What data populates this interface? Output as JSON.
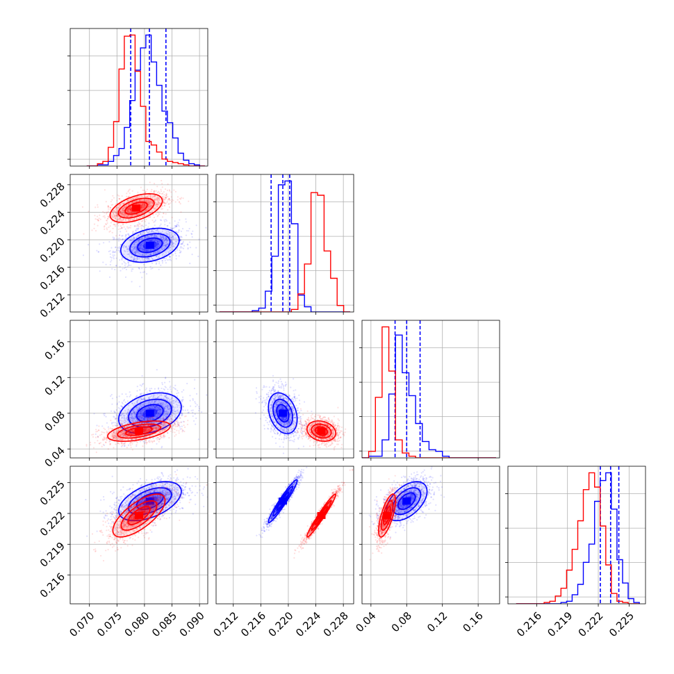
{
  "colors": {
    "series_a": "#0000ff",
    "series_b": "#ff0000",
    "grid": "#b0b0b0",
    "frame": "#000000"
  },
  "chart_data": {
    "type": "corner",
    "series": [
      {
        "color": "#0000ff",
        "quantiles": {
          "p0": [
            0.0775,
            0.0809,
            0.0839
          ],
          "p1": [
            0.2175,
            0.2192,
            0.2202
          ],
          "p2": [
            0.067,
            0.08,
            0.095
          ],
          "p3": [
            0.2222,
            0.2232,
            0.224
          ]
        },
        "hist": {
          "p0": {
            "edges": [
              0.0695,
              0.091
            ],
            "counts": [
              0,
              0,
              1,
              1,
              4,
              9,
              15,
              33,
              56,
              82,
              101,
              112,
              89,
              69,
              47,
              37,
              24,
              11,
              5,
              2,
              1,
              0
            ]
          },
          "p1": {
            "edges": [
              0.21,
              0.229
            ],
            "counts": [
              0,
              0,
              0,
              0,
              0,
              1,
              3,
              16,
              43,
              98,
              101,
              68,
              13,
              4,
              0,
              0,
              0,
              0,
              0,
              0
            ]
          },
          "p2": {
            "edges": [
              0.03,
              0.18
            ],
            "counts": [
              0,
              1,
              1,
              11,
              39,
              75,
              52,
              38,
              21,
              10,
              5,
              4,
              1,
              0,
              0,
              0,
              0,
              0,
              0,
              0
            ]
          },
          "p3": {
            "edges": [
              0.214,
              0.226
            ],
            "counts": [
              0,
              0,
              0,
              0,
              0,
              0,
              0,
              0,
              1,
              2,
              7,
              15,
              32,
              46,
              79,
              95,
              101,
              73,
              34,
              16,
              4,
              1
            ]
          }
        },
        "pairs": [
          {
            "x": "p0",
            "y": "p1",
            "mean": [
              0.081,
              0.2192
            ],
            "sd": [
              0.0028,
              0.0013
            ],
            "rho": 0.3
          },
          {
            "x": "p0",
            "y": "p2",
            "mean": [
              0.081,
              0.08
            ],
            "sd": [
              0.003,
              0.012
            ],
            "rho": 0.3
          },
          {
            "x": "p1",
            "y": "p2",
            "mean": [
              0.2192,
              0.08
            ],
            "sd": [
              0.0011,
              0.012
            ],
            "rho": -0.3
          },
          {
            "x": "p0",
            "y": "p3",
            "mean": [
              0.081,
              0.2232
            ],
            "sd": [
              0.003,
              0.001
            ],
            "rho": 0.5
          },
          {
            "x": "p1",
            "y": "p3",
            "mean": [
              0.2192,
              0.2232
            ],
            "sd": [
              0.0011,
              0.0011
            ],
            "rho": 0.96
          },
          {
            "x": "p2",
            "y": "p3",
            "mean": [
              0.08,
              0.2232
            ],
            "sd": [
              0.012,
              0.001
            ],
            "rho": 0.5
          }
        ]
      },
      {
        "color": "#ff0000",
        "hist": {
          "p0": {
            "edges": [
              0.0695,
              0.091
            ],
            "counts": [
              0,
              0,
              2,
              4,
              16,
              38,
              83,
              111,
              112,
              81,
              51,
              21,
              18,
              12,
              6,
              4,
              3,
              2,
              1,
              0,
              0,
              0
            ]
          },
          "p1": {
            "edges": [
              0.21,
              0.229
            ],
            "counts": [
              0,
              0,
              0,
              0,
              0,
              0,
              0,
              0,
              0,
              0,
              0,
              2,
              14,
              37,
              92,
              90,
              47,
              26,
              5,
              0
            ]
          },
          "p2": {
            "edges": [
              0.03,
              0.18
            ],
            "counts": [
              0,
              4,
              37,
              80,
              53,
              11,
              3,
              1,
              0,
              0,
              0,
              0,
              0,
              0,
              0,
              0,
              0,
              0,
              0,
              0
            ]
          },
          "p3": {
            "edges": [
              0.214,
              0.226
            ],
            "counts": [
              0,
              0,
              0,
              0,
              0,
              1,
              2,
              6,
              12,
              26,
              42,
              64,
              88,
              101,
              90,
              60,
              30,
              8,
              2,
              1,
              0,
              0
            ]
          }
        },
        "pairs": [
          {
            "x": "p0",
            "y": "p1",
            "mean": [
              0.0785,
              0.2246
            ],
            "sd": [
              0.0025,
              0.0011
            ],
            "rho": 0.5
          },
          {
            "x": "p0",
            "y": "p2",
            "mean": [
              0.079,
              0.06
            ],
            "sd": [
              0.003,
              0.006
            ],
            "rho": 0.5
          },
          {
            "x": "p1",
            "y": "p2",
            "mean": [
              0.2248,
              0.06
            ],
            "sd": [
              0.0011,
              0.006
            ],
            "rho": -0.2
          },
          {
            "x": "p0",
            "y": "p3",
            "mean": [
              0.079,
              0.2218
            ],
            "sd": [
              0.0025,
              0.0011
            ],
            "rho": 0.7
          },
          {
            "x": "p1",
            "y": "p3",
            "mean": [
              0.2248,
              0.2218
            ],
            "sd": [
              0.0011,
              0.0011
            ],
            "rho": 0.97
          },
          {
            "x": "p2",
            "y": "p3",
            "mean": [
              0.058,
              0.2218
            ],
            "sd": [
              0.005,
              0.0011
            ],
            "rho": 0.7
          }
        ]
      }
    ],
    "panels": {
      "p0": {
        "range": [
          0.0665,
          0.0915
        ],
        "ticks": [
          0.07,
          0.075,
          0.08,
          0.085,
          0.09
        ],
        "tick_labels": [
          "0.070",
          "0.075",
          "0.080",
          "0.085",
          "0.090"
        ]
      },
      "p1": {
        "range": [
          0.2095,
          0.2295
        ],
        "ticks": [
          0.212,
          0.216,
          0.22,
          0.224,
          0.228
        ],
        "tick_labels": [
          "0.212",
          "0.216",
          "0.220",
          "0.224",
          "0.228"
        ]
      },
      "p2": {
        "range": [
          0.03,
          0.184
        ],
        "ticks": [
          0.04,
          0.08,
          0.12,
          0.16
        ],
        "tick_labels": [
          "0.04",
          "0.08",
          "0.12",
          "0.16"
        ]
      },
      "p3": {
        "range": [
          0.2132,
          0.2266
        ],
        "ticks": [
          0.216,
          0.219,
          0.222,
          0.225
        ],
        "tick_labels": [
          "0.216",
          "0.219",
          "0.222",
          "0.225"
        ]
      }
    },
    "grid": true,
    "title": "",
    "xlabel": "",
    "ylabel": ""
  }
}
